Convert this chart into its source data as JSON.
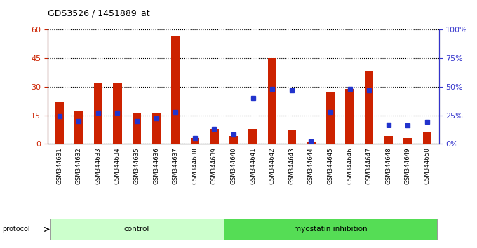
{
  "title": "GDS3526 / 1451889_at",
  "samples": [
    "GSM344631",
    "GSM344632",
    "GSM344633",
    "GSM344634",
    "GSM344635",
    "GSM344636",
    "GSM344637",
    "GSM344638",
    "GSM344639",
    "GSM344640",
    "GSM344641",
    "GSM344642",
    "GSM344643",
    "GSM344644",
    "GSM344645",
    "GSM344646",
    "GSM344647",
    "GSM344648",
    "GSM344649",
    "GSM344650"
  ],
  "count": [
    22,
    17,
    32,
    32,
    16,
    16,
    57,
    3,
    8,
    4,
    8,
    45,
    7,
    1,
    27,
    29,
    38,
    4,
    3,
    6
  ],
  "percentile": [
    24,
    20,
    27,
    27,
    20,
    22,
    28,
    5,
    13,
    8,
    40,
    48,
    47,
    2,
    28,
    48,
    47,
    17,
    16,
    19
  ],
  "control_count": 9,
  "protocol_labels": [
    "control",
    "myostatin inhibition"
  ],
  "left_ylim": [
    0,
    60
  ],
  "left_yticks": [
    0,
    15,
    30,
    45,
    60
  ],
  "right_ylim": [
    0,
    100
  ],
  "right_yticks": [
    0,
    25,
    50,
    75,
    100
  ],
  "bar_color": "#cc2200",
  "percentile_color": "#2233cc",
  "left_axis_color": "#cc2200",
  "right_axis_color": "#3333cc",
  "control_bg": "#ccffcc",
  "inhibition_bg": "#55dd55",
  "tick_bg": "#dddddd",
  "bar_width": 0.45
}
